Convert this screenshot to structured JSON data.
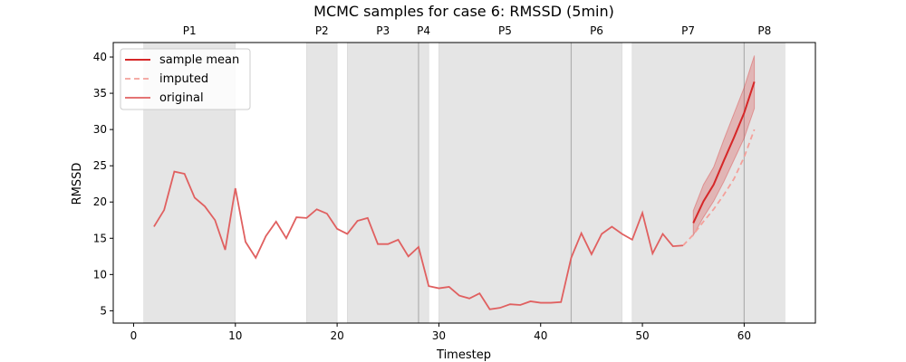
{
  "chart_data": {
    "type": "line",
    "title": "MCMC samples for case 6: RMSSD (5min)",
    "xlabel": "Timestep",
    "ylabel": "RMSSD",
    "xlim": [
      -2.0,
      67.0
    ],
    "ylim": [
      3.3,
      42.0
    ],
    "xticks": [
      0,
      10,
      20,
      30,
      40,
      50,
      60
    ],
    "yticks": [
      5,
      10,
      15,
      20,
      25,
      30,
      35,
      40
    ],
    "grid": false,
    "legend_position": "upper-left",
    "legend": [
      "sample mean",
      "imputed",
      "original"
    ],
    "colors": {
      "sample_mean": "#d62728",
      "imputed": "#f4a09a",
      "original": "#e06060",
      "band": "#d62728",
      "shade": "#e5e5e5",
      "vline": "#b0b0b0"
    },
    "phases": [
      {
        "label": "P1",
        "start": 1,
        "end": 10
      },
      {
        "label": "P2",
        "start": 17,
        "end": 20
      },
      {
        "label": "P3",
        "start": 21,
        "end": 28
      },
      {
        "label": "P4",
        "start": 28,
        "end": 29
      },
      {
        "label": "P5",
        "start": 30,
        "end": 43
      },
      {
        "label": "P6",
        "start": 43,
        "end": 48
      },
      {
        "label": "P7",
        "start": 49,
        "end": 60
      },
      {
        "label": "P8",
        "start": 60,
        "end": 64
      }
    ],
    "vlines": [
      28,
      43,
      60
    ],
    "series": [
      {
        "name": "original",
        "x": [
          2,
          3,
          4,
          5,
          6,
          7,
          8,
          9,
          10,
          11,
          12,
          13,
          14,
          15,
          16,
          17,
          18,
          19,
          20,
          21,
          22,
          23,
          24,
          25,
          26,
          27,
          28,
          29,
          30,
          31,
          32,
          33,
          34,
          35,
          36,
          37,
          38,
          39,
          40,
          41,
          42,
          43,
          44,
          45,
          46,
          47,
          48,
          49,
          50,
          51,
          52,
          53,
          54
        ],
        "y": [
          16.6,
          18.9,
          24.2,
          23.9,
          20.6,
          19.4,
          17.5,
          13.4,
          21.9,
          14.5,
          12.3,
          15.3,
          17.3,
          15.0,
          17.9,
          17.8,
          19.0,
          18.4,
          16.3,
          15.6,
          17.4,
          17.8,
          14.2,
          14.2,
          14.8,
          12.5,
          13.8,
          8.4,
          8.1,
          8.3,
          7.1,
          6.7,
          7.4,
          5.2,
          5.4,
          5.9,
          5.8,
          6.3,
          6.1,
          6.1,
          6.2,
          12.3,
          15.7,
          12.8,
          15.6,
          16.6,
          15.6,
          14.8,
          18.5,
          12.9,
          15.6,
          13.9,
          14.0
        ]
      },
      {
        "name": "imputed",
        "x": [
          54,
          55,
          56,
          57,
          58,
          59,
          60,
          61
        ],
        "y": [
          14.0,
          15.5,
          17.3,
          19.0,
          21.0,
          23.2,
          26.2,
          30.0
        ]
      },
      {
        "name": "sample mean",
        "x": [
          55,
          56,
          57,
          58,
          59,
          60,
          61
        ],
        "y": [
          17.1,
          20.1,
          22.4,
          25.7,
          28.9,
          32.3,
          36.6
        ],
        "lower": [
          15.4,
          17.9,
          20.1,
          22.8,
          25.8,
          28.8,
          32.9
        ],
        "upper": [
          18.8,
          22.4,
          24.8,
          28.6,
          32.2,
          35.8,
          40.2
        ]
      }
    ]
  }
}
